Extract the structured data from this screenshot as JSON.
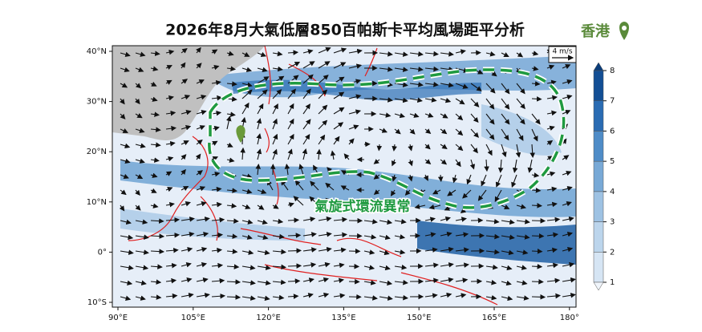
{
  "title": "2026年8月大氣低層850百帕斯卡平均風場距平分析",
  "location_label": "香港",
  "annotation": "氣旋式環流異常",
  "reference_vector": "4 m/s",
  "lat_ticks": [
    "40°N",
    "30°N",
    "20°N",
    "10°N",
    "0°",
    "10°S"
  ],
  "lon_ticks": [
    "90°E",
    "105°E",
    "120°E",
    "135°E",
    "150°E",
    "165°E",
    "180°"
  ],
  "colorbar_ticks": [
    "1",
    "2",
    "3",
    "4",
    "5",
    "6",
    "7",
    "8"
  ]
}
